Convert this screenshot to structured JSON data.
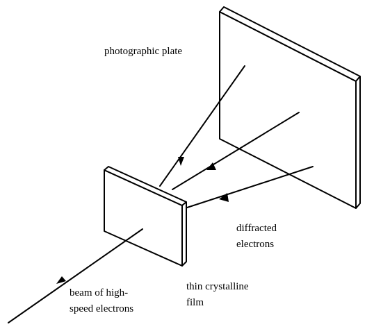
{
  "labels": {
    "photographic_plate": "photographic plate",
    "diffracted_line1": "diffracted",
    "diffracted_line2": "electrons",
    "thin_film_line1": "thin crystalline",
    "thin_film_line2": "film",
    "beam_line1": "beam of high-",
    "beam_line2": "speed electrons"
  },
  "colors": {
    "line": "#000000",
    "background": "#ffffff"
  }
}
